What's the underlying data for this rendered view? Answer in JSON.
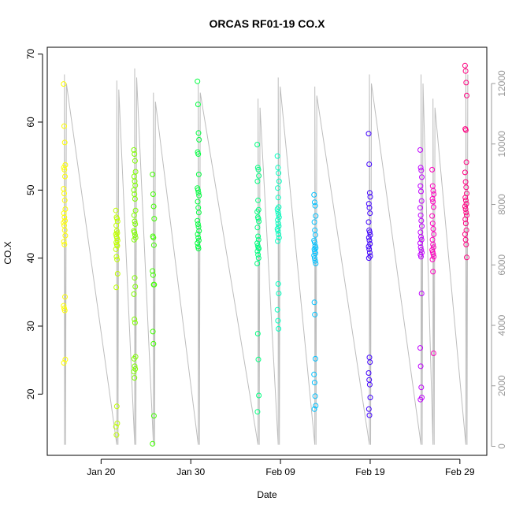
{
  "chart_data": {
    "type": "scatter",
    "title": "ORCAS RF01-19 CO.X",
    "xlabel": "Date",
    "ylabel": "CO.X",
    "x_range": [
      "2016-01-14",
      "2016-03-03"
    ],
    "ylim": [
      11,
      71
    ],
    "y2lim": [
      -300,
      13200
    ],
    "x_ticks": [
      {
        "date": "2016-01-20",
        "label": "Jan 20"
      },
      {
        "date": "2016-01-30",
        "label": "Jan 30"
      },
      {
        "date": "2016-02-09",
        "label": "Feb 09"
      },
      {
        "date": "2016-02-19",
        "label": "Feb 19"
      },
      {
        "date": "2016-02-29",
        "label": "Feb 29"
      }
    ],
    "y_ticks": [
      20,
      30,
      40,
      50,
      60,
      70
    ],
    "y2_ticks": [
      0,
      2000,
      4000,
      6000,
      8000,
      10000,
      12000
    ],
    "altitude_color": "#bdbdbd",
    "flights": [
      {
        "date": "2016-01-15T22:00",
        "color": "#ffff00",
        "alt_max": 12300,
        "values": [
          65.6,
          59.4,
          57,
          53.7,
          53.3,
          53,
          52,
          50.2,
          49.5,
          48.5,
          47.2,
          46.6,
          46,
          45.5,
          45.2,
          44.8,
          44.1,
          43.3,
          42.4,
          42,
          34.3,
          33,
          32.6,
          32.3,
          25.1,
          24.6
        ]
      },
      {
        "date": "2016-01-21T18:00",
        "color": "#bfff00",
        "alt_max": 12100,
        "values": [
          47,
          46,
          45.8,
          45.4,
          44.8,
          44,
          43.7,
          43.5,
          43.2,
          42.9,
          42.6,
          42.3,
          42,
          41.8,
          41.3,
          40.2,
          39.8,
          37.7,
          35.7,
          18.2,
          15.7,
          15.2,
          14
        ]
      },
      {
        "date": "2016-01-23T18:00",
        "color": "#80ff00",
        "alt_max": 12500,
        "values": [
          55.9,
          55.3,
          54.3,
          52.7,
          52,
          51.3,
          50.7,
          50,
          49.4,
          48.7,
          47,
          46.3,
          45.4,
          45,
          44,
          43.8,
          43.4,
          43,
          42.7,
          37.1,
          35.8,
          34.7,
          31,
          30.5,
          25.5,
          25.2,
          24.1,
          23.7,
          23.3,
          22.4
        ]
      },
      {
        "date": "2016-01-25T20:00",
        "color": "#40ff00",
        "alt_max": 11700,
        "values": [
          52.3,
          49.4,
          47.6,
          45.8,
          43.2,
          43,
          41.9,
          38.1,
          37.5,
          36.1,
          36.1,
          29.2,
          27.4,
          16.8,
          12.7
        ]
      },
      {
        "date": "2016-01-30T20:00",
        "color": "#00ff40",
        "alt_max": 12000,
        "values": [
          66,
          62.6,
          58.4,
          57.4,
          55.6,
          55.3,
          52.3,
          50.3,
          50,
          49.6,
          49.2,
          48.3,
          47.4,
          46.7,
          45.5,
          45,
          44.6,
          44,
          43.5,
          43,
          42.6,
          42.2,
          41.7,
          41.4
        ]
      },
      {
        "date": "2016-02-06T12:00",
        "color": "#00ff80",
        "alt_max": 11500,
        "values": [
          56.7,
          53.3,
          53,
          52.1,
          51.3,
          48.5,
          47.1,
          46.8,
          46,
          45.8,
          45.4,
          44.5,
          43.2,
          42.7,
          42.2,
          41.8,
          41.5,
          41.4,
          41,
          40.5,
          40,
          39.2,
          28.9,
          25.1,
          19.8,
          17.4
        ]
      },
      {
        "date": "2016-02-08T18:00",
        "color": "#00ffbf",
        "alt_max": 12200,
        "values": [
          55,
          53.3,
          52.5,
          51.3,
          50.3,
          48.9,
          47.5,
          47.2,
          46.8,
          46.4,
          46,
          45.6,
          45.1,
          44.7,
          44.3,
          44,
          43.5,
          43,
          42.5,
          36.2,
          34.8,
          32.4,
          30.8,
          29.6
        ]
      },
      {
        "date": "2016-02-12T20:00",
        "color": "#00c0ff",
        "alt_max": 11900,
        "values": [
          49.3,
          48.2,
          47.7,
          46.2,
          45.3,
          44.1,
          43.4,
          42.6,
          42.3,
          41.8,
          41.5,
          41.3,
          41,
          40.7,
          40.4,
          40,
          39.6,
          39.2,
          33.5,
          31.7,
          25.2,
          22.9,
          21.7,
          19.7,
          18.3,
          17.8
        ]
      },
      {
        "date": "2016-02-18T22:00",
        "color": "#4000ff",
        "alt_max": 12300,
        "values": [
          58.3,
          53.8,
          49.6,
          49,
          48,
          47.4,
          46.6,
          45.3,
          44.1,
          43.8,
          43.4,
          43,
          42.6,
          42.1,
          41.7,
          41.3,
          40.8,
          40.3,
          40,
          25.4,
          24.7,
          23.1,
          22.1,
          21.4,
          19.5,
          17.8,
          16.9
        ]
      },
      {
        "date": "2016-02-24T16:00",
        "color": "#c000ff",
        "alt_max": 12300,
        "values": [
          55.9,
          53.3,
          52.9,
          51.9,
          50.6,
          49.8,
          48.4,
          47.4,
          46.3,
          45.5,
          44.7,
          43.8,
          43.1,
          42.7,
          42.2,
          41.6,
          41.2,
          40.8,
          40.5,
          40.2,
          34.8,
          26.8,
          24.1,
          21,
          19.5,
          19.2
        ]
      },
      {
        "date": "2016-02-26T00:00",
        "color": "#ff00c0",
        "alt_max": 11500,
        "values": [
          53,
          50.6,
          49.9,
          49.4,
          48.7,
          48.3,
          47.5,
          46.2,
          45.1,
          44.3,
          43.5,
          42.7,
          42,
          41.6,
          41.2,
          40.9,
          40.6,
          40.2,
          39.8,
          38,
          26
        ]
      },
      {
        "date": "2016-02-29T16:00",
        "color": "#ff0080",
        "alt_max": 12600,
        "values": [
          68.3,
          67.5,
          65.8,
          63.9,
          59,
          58.8,
          54.1,
          52.6,
          51.2,
          50.4,
          49.5,
          48.9,
          48.5,
          48,
          47.6,
          47.2,
          46.7,
          46.3,
          45.7,
          45.1,
          44.1,
          43.5,
          42.7,
          42,
          40.1
        ]
      }
    ]
  }
}
